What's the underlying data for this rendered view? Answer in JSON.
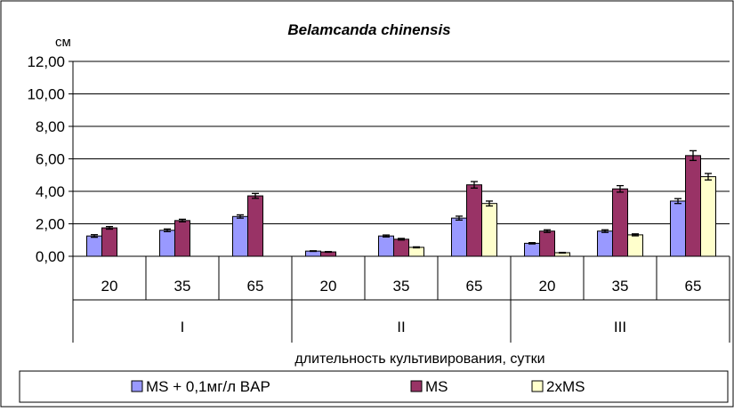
{
  "chart_data": {
    "type": "bar",
    "title": "Belamcanda chinensis",
    "ylabel": "см",
    "xlabel": "длительность культивирования, сутки",
    "ylim": [
      0,
      12
    ],
    "yticks": [
      0,
      2,
      4,
      6,
      8,
      10,
      12
    ],
    "ytick_labels": [
      "0,00",
      "2,00",
      "4,00",
      "6,00",
      "8,00",
      "10,00",
      "12,00"
    ],
    "grid": true,
    "legend_position": "bottom",
    "groups": [
      {
        "label": "I",
        "categories": [
          "20",
          "35",
          "65"
        ]
      },
      {
        "label": "II",
        "categories": [
          "20",
          "35",
          "65"
        ]
      },
      {
        "label": "III",
        "categories": [
          "20",
          "35",
          "65"
        ]
      }
    ],
    "series": [
      {
        "name": "MS + 0,1мг/л BAP",
        "color": "#9999FF",
        "values": [
          1.25,
          1.6,
          2.45,
          0.32,
          1.25,
          2.35,
          0.8,
          1.55,
          3.4
        ],
        "errors": [
          0.08,
          0.08,
          0.1,
          0.02,
          0.06,
          0.12,
          0.04,
          0.08,
          0.15
        ]
      },
      {
        "name": "MS",
        "color": "#993366",
        "values": [
          1.75,
          2.2,
          3.72,
          0.27,
          1.05,
          4.4,
          1.55,
          4.15,
          6.2
        ],
        "errors": [
          0.08,
          0.08,
          0.15,
          0.02,
          0.05,
          0.2,
          0.08,
          0.2,
          0.3
        ]
      },
      {
        "name": "2xMS",
        "color": "#FFFFCC",
        "values": [
          null,
          null,
          null,
          null,
          0.55,
          3.25,
          0.22,
          1.32,
          4.9
        ],
        "errors": [
          null,
          null,
          null,
          null,
          0.03,
          0.15,
          0.02,
          0.06,
          0.2
        ]
      }
    ]
  }
}
